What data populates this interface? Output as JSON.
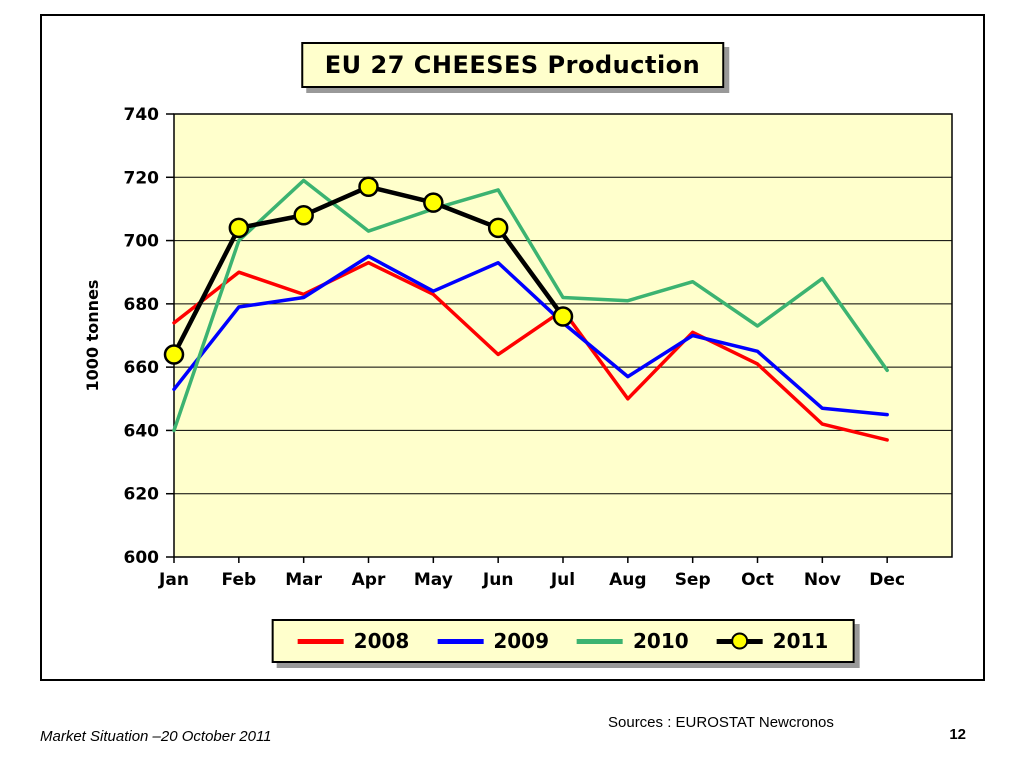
{
  "slide": {
    "footer_left": "Market Situation –20 October 2011",
    "footer_source": "Sources : EUROSTAT Newcronos",
    "page_number": "12"
  },
  "colors": {
    "plot_bg": "#ffffcc",
    "panel_bg": "#ffffcc",
    "border": "#000000",
    "shadow": "#999999"
  },
  "chart_data": {
    "type": "line",
    "title": "EU 27 CHEESES Production",
    "xlabel": "",
    "ylabel": "1000 tonnes",
    "ylim": [
      600,
      740
    ],
    "ytick_step": 20,
    "grid": true,
    "legend_position": "bottom",
    "plot_bg": "#ffffcc",
    "categories": [
      "Jan",
      "Feb",
      "Mar",
      "Apr",
      "May",
      "Jun",
      "Jul",
      "Aug",
      "Sep",
      "Oct",
      "Nov",
      "Dec"
    ],
    "series": [
      {
        "name": "2008",
        "color": "#ff0000",
        "values": [
          674,
          690,
          683,
          693,
          683,
          664,
          678,
          650,
          671,
          661,
          642,
          637
        ]
      },
      {
        "name": "2009",
        "color": "#0000ff",
        "values": [
          653,
          679,
          682,
          695,
          684,
          693,
          674,
          657,
          670,
          665,
          647,
          645
        ]
      },
      {
        "name": "2010",
        "color": "#3cb371",
        "values": [
          640,
          700,
          719,
          703,
          710,
          716,
          682,
          681,
          687,
          673,
          688,
          659
        ]
      },
      {
        "name": "2011",
        "color": "#000000",
        "marker": {
          "fill": "#ffff00",
          "stroke": "#000000"
        },
        "values": [
          664,
          704,
          708,
          717,
          712,
          704,
          676
        ]
      }
    ]
  }
}
